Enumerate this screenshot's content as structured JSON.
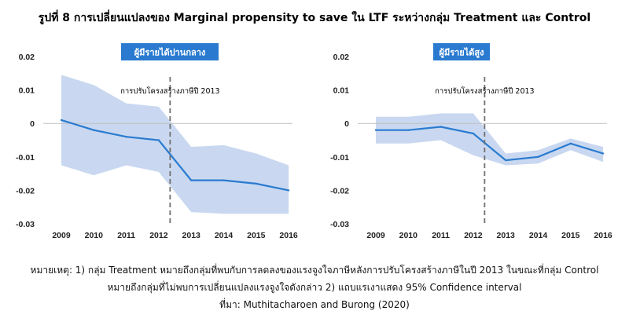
{
  "title": "รูปที่ 8 การเปลี่ยนแปลงของ Marginal propensity to save ใน LTF ระหว่างกลุ่ม Treatment และ Control",
  "colors": {
    "line": "#2a7bd0",
    "band": "#c9d8f0",
    "badge": "#2a7bd0",
    "dash": "#6f6f6f",
    "axis": "#bfbfbf"
  },
  "chart_data": [
    {
      "type": "line",
      "badge": "ผู้มีรายได้ปานกลาง",
      "annotation": "การปรับโครงสร้างภาษีปี 2013",
      "x": [
        2009,
        2010,
        2011,
        2012,
        2013,
        2014,
        2015,
        2016
      ],
      "x_tick_labels": [
        "2009",
        "2010",
        "2011",
        "2012",
        "2013",
        "2014",
        "2015",
        "2016"
      ],
      "y_ticks": [
        "0.02",
        "0.01",
        "0",
        "-0.01",
        "-0.02",
        "-0.03"
      ],
      "ylim": [
        -0.03,
        0.02
      ],
      "reform_line_x": 2012.35,
      "series": [
        {
          "values": [
            0.001,
            -0.002,
            -0.004,
            -0.005,
            -0.017,
            -0.017,
            -0.018,
            -0.02
          ]
        }
      ],
      "ci_upper": [
        0.0145,
        0.0115,
        0.006,
        0.005,
        -0.007,
        -0.0065,
        -0.009,
        -0.0125
      ],
      "ci_lower": [
        -0.0125,
        -0.0155,
        -0.0125,
        -0.0145,
        -0.0265,
        -0.027,
        -0.027,
        -0.027
      ],
      "grid": false
    },
    {
      "type": "line",
      "badge": "ผู้มีรายได้สูง",
      "annotation": "การปรับโครงสร้างภาษีปี 2013",
      "x": [
        2009,
        2010,
        2011,
        2012,
        2013,
        2014,
        2015,
        2016
      ],
      "x_tick_labels": [
        "2009",
        "2010",
        "2011",
        "2012",
        "2013",
        "2014",
        "2015",
        "2016"
      ],
      "y_ticks": [
        "0.02",
        "0.01",
        "0",
        "-0.01",
        "-0.02",
        "-0.03"
      ],
      "ylim": [
        -0.03,
        0.02
      ],
      "reform_line_x": 2012.35,
      "series": [
        {
          "values": [
            -0.002,
            -0.002,
            -0.001,
            -0.003,
            -0.011,
            -0.01,
            -0.006,
            -0.009
          ]
        }
      ],
      "ci_upper": [
        0.002,
        0.002,
        0.003,
        0.003,
        -0.009,
        -0.008,
        -0.0045,
        -0.007
      ],
      "ci_lower": [
        -0.006,
        -0.006,
        -0.005,
        -0.0095,
        -0.0125,
        -0.012,
        -0.008,
        -0.0115
      ],
      "grid": false
    }
  ],
  "footnote": {
    "line1": "หมายเหตุ: 1) กลุ่ม Treatment หมายถึงกลุ่มที่พบกับการลดลงของแรงจูงใจภาษีหลังการปรับโครงสร้างภาษีในปี 2013 ในขณะที่กลุ่ม Control",
    "line2": "หมายถึงกลุ่มที่ไม่พบการเปลี่ยนแปลงแรงจูงใจดังกล่าว 2) แถบแรเงาแสดง 95% Confidence interval",
    "line3": "ที่มา: Muthitacharoen and Burong (2020)"
  }
}
